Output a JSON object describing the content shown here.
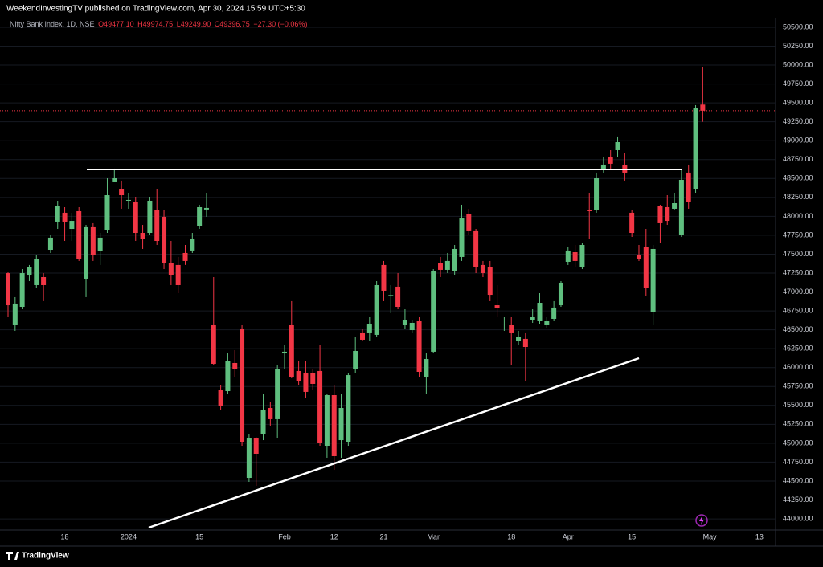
{
  "header": "WeekendInvestingTV published on TradingView.com, Apr 30, 2024 15:59 UTC+5:30",
  "branding": "TradingView",
  "chart_data": {
    "type": "candlestick",
    "legend": {
      "symbol": "Nifty Bank Index, 1D, NSE",
      "open": "O49477.10",
      "high": "H49974.75",
      "low": "L49249.90",
      "close": "C49396.75",
      "change": "−27.30 (−0.06%)"
    },
    "up_color": "#5fbf7f",
    "down_color": "#f23645",
    "grid": true,
    "last_price_line": true,
    "ylim": [
      43852,
      50627
    ],
    "yticks": [
      {
        "value": 44000,
        "label": "44000.00"
      },
      {
        "value": 44250,
        "label": "44250.00"
      },
      {
        "value": 44500,
        "label": "44500.00"
      },
      {
        "value": 44750,
        "label": "44750.00"
      },
      {
        "value": 45000,
        "label": "45000.00"
      },
      {
        "value": 45250,
        "label": "45250.00"
      },
      {
        "value": 45500,
        "label": "45500.00"
      },
      {
        "value": 45750,
        "label": "45750.00"
      },
      {
        "value": 46000,
        "label": "46000.00"
      },
      {
        "value": 46250,
        "label": "46250.00"
      },
      {
        "value": 46500,
        "label": "46500.00"
      },
      {
        "value": 46750,
        "label": "46750.00"
      },
      {
        "value": 47000,
        "label": "47000.00"
      },
      {
        "value": 47250,
        "label": "47250.00"
      },
      {
        "value": 47500,
        "label": "47500.00"
      },
      {
        "value": 47750,
        "label": "47750.00"
      },
      {
        "value": 48000,
        "label": "48000.00"
      },
      {
        "value": 48250,
        "label": "48250.00"
      },
      {
        "value": 48500,
        "label": "48500.00"
      },
      {
        "value": 48750,
        "label": "48750.00"
      },
      {
        "value": 49000,
        "label": "49000.00"
      },
      {
        "value": 49250,
        "label": "49250.00"
      },
      {
        "value": 49500,
        "label": "49500.00"
      },
      {
        "value": 49750,
        "label": "49750.00"
      },
      {
        "value": 50000,
        "label": "50000.00"
      },
      {
        "value": 50250,
        "label": "50250.00"
      },
      {
        "value": 50500,
        "label": "50500.00"
      }
    ],
    "categories": [
      null,
      null,
      null,
      null,
      null,
      null,
      null,
      null,
      "18",
      null,
      null,
      null,
      null,
      null,
      null,
      null,
      null,
      "2024",
      null,
      null,
      null,
      null,
      null,
      null,
      null,
      null,
      null,
      "15",
      null,
      null,
      null,
      null,
      null,
      null,
      null,
      null,
      null,
      null,
      null,
      "Feb",
      null,
      null,
      null,
      null,
      null,
      null,
      "12",
      null,
      null,
      null,
      null,
      null,
      null,
      "21",
      null,
      null,
      null,
      null,
      null,
      null,
      "Mar",
      null,
      null,
      null,
      null,
      null,
      null,
      null,
      null,
      null,
      null,
      "18",
      null,
      null,
      null,
      null,
      null,
      null,
      null,
      "Apr",
      null,
      null,
      null,
      null,
      null,
      null,
      null,
      null,
      "15",
      null,
      null,
      null,
      null,
      null,
      null,
      null,
      null,
      null,
      null,
      "May",
      null,
      null,
      null,
      null,
      null,
      null,
      "13"
    ],
    "open": [
      47250,
      46560,
      46804,
      47218,
      47091,
      47197,
      47558,
      47930,
      48047,
      47834,
      48068,
      47176,
      47856,
      47537,
      47813,
      48461,
      48365,
      48206,
      48185,
      47781,
      47781,
      48079,
      47994,
      47378,
      47357,
      47516,
      47548,
      47866,
      48090,
      46560,
      45710,
      45689,
      46061,
      46507,
      44542,
      45073,
      45126,
      45466,
      45318,
      46188,
      46560,
      45955,
      45923,
      45923,
      45955,
      44967,
      45636,
      45041,
      45020,
      45976,
      46454,
      46454,
      46433,
      47357,
      46945,
      47070,
      46560,
      46496,
      46613,
      45870,
      46210,
      47378,
      47293,
      47272,
      47463,
      48026,
      47803,
      47357,
      47325,
      46825,
      46571,
      46560,
      46348,
      46380,
      46634,
      46613,
      46560,
      46645,
      46825,
      47399,
      47526,
      47335,
      48079,
      48079,
      48610,
      48790,
      48875,
      48673,
      48047,
      47484,
      47590,
      46740,
      48142,
      48121,
      48100,
      47760,
      48578,
      48365,
      49477.1,
      null,
      null,
      null,
      null,
      null,
      null,
      null,
      null
    ],
    "high": [
      47260,
      46932,
      47303,
      47357,
      47484,
      47250,
      47760,
      48206,
      48121,
      48047,
      48121,
      47887,
      47909,
      47781,
      48503,
      48631,
      48472,
      48312,
      48259,
      47887,
      48259,
      48365,
      48079,
      47675,
      47463,
      47622,
      47781,
      48153,
      48312,
      47197,
      45764,
      46188,
      46231,
      46560,
      45126,
      45080,
      45657,
      45551,
      46029,
      46295,
      46879,
      46082,
      46082,
      45976,
      46295,
      45657,
      45764,
      45657,
      45923,
      46401,
      46507,
      46666,
      47144,
      47410,
      47091,
      47250,
      46772,
      46634,
      46666,
      46188,
      47303,
      47463,
      47516,
      47622,
      48153,
      48100,
      47834,
      47410,
      47410,
      47091,
      46666,
      46666,
      46486,
      46454,
      46772,
      46985,
      46666,
      46879,
      47144,
      47590,
      47622,
      47643,
      48312,
      48578,
      48790,
      48875,
      49056,
      48843,
      48079,
      47622,
      47834,
      47622,
      48153,
      48280,
      48312,
      48631,
      48684,
      49470,
      49974.75,
      null,
      null,
      null,
      null,
      null,
      null,
      null,
      null
    ],
    "low": [
      46666,
      46486,
      46772,
      47144,
      47059,
      46879,
      47516,
      47834,
      47675,
      47675,
      47410,
      46932,
      47410,
      47357,
      47781,
      48461,
      48100,
      48100,
      47675,
      47569,
      47760,
      47622,
      47303,
      47091,
      46985,
      47357,
      47516,
      47834,
      47994,
      46029,
      45445,
      45657,
      45870,
      44967,
      44489,
      44436,
      45041,
      45233,
      45073,
      45976,
      45860,
      45764,
      45604,
      45710,
      44967,
      44808,
      44648,
      44808,
      44967,
      45923,
      46348,
      46348,
      46401,
      46879,
      46719,
      46772,
      46507,
      46454,
      45870,
      45657,
      46188,
      47197,
      47250,
      47229,
      47410,
      47760,
      47250,
      47197,
      46879,
      46666,
      46486,
      46029,
      46295,
      45817,
      46592,
      46581,
      46528,
      46613,
      46804,
      47357,
      47335,
      47303,
      47696,
      48047,
      48578,
      48631,
      48790,
      48472,
      47728,
      47410,
      46953,
      46560,
      47643,
      47887,
      48079,
      47728,
      48100,
      48312,
      49249.9,
      null,
      null,
      null,
      null,
      null,
      null,
      null,
      null
    ],
    "close": [
      46825,
      46847,
      47250,
      47325,
      47431,
      47091,
      47718,
      48142,
      47930,
      47940,
      47431,
      47856,
      47484,
      47718,
      48280,
      48503,
      48280,
      48217,
      47781,
      47696,
      48206,
      47675,
      47378,
      47229,
      47091,
      47410,
      47707,
      48121,
      48111,
      46050,
      45498,
      46082,
      45976,
      45020,
      45073,
      44861,
      45445,
      45318,
      45976,
      46210,
      45870,
      45817,
      45679,
      45785,
      44999,
      45636,
      44829,
      45466,
      45901,
      46220,
      46369,
      46581,
      47091,
      47017,
      46960,
      46804,
      46634,
      46592,
      45944,
      46114,
      47272,
      47293,
      47410,
      47569,
      47972,
      47803,
      47325,
      47250,
      46963,
      46783,
      46581,
      46454,
      46401,
      46273,
      46666,
      46857,
      46613,
      46794,
      47123,
      47548,
      47410,
      47622,
      48068,
      48503,
      48684,
      48695,
      48981,
      48578,
      47781,
      47441,
      47059,
      47569,
      47909,
      47940,
      48174,
      48482,
      48185,
      49427,
      49396.75,
      null,
      null,
      null,
      null,
      null,
      null,
      null,
      null
    ]
  }
}
